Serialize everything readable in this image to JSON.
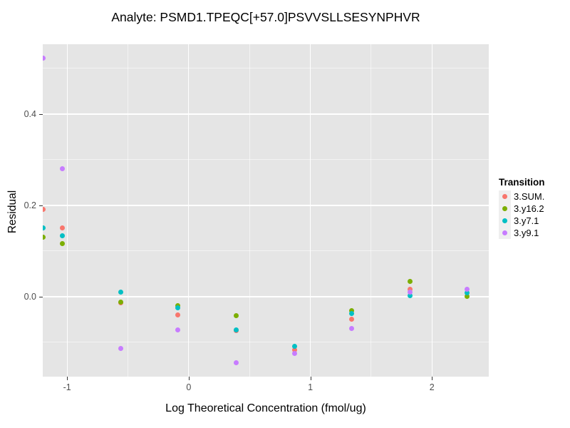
{
  "chart_data": {
    "type": "scatter",
    "title": "Analyte: PSMD1.TPEQC[+57.0]PSVVSLLSESYNPHVR",
    "xlabel": "Log Theoretical Concentration (fmol/ug)",
    "ylabel": "Residual",
    "xlim": [
      -1.2,
      2.467
    ],
    "ylim": [
      -0.175,
      0.553
    ],
    "x_ticks": [
      -1,
      0,
      1,
      2
    ],
    "x_tick_labels": [
      "-1",
      "0",
      "1",
      "2"
    ],
    "y_ticks": [
      0.0,
      0.2,
      0.4
    ],
    "y_tick_labels": [
      "0.0",
      "0.2",
      "0.4"
    ],
    "x_minor_gridlines": [
      -0.5,
      0.5,
      1.5
    ],
    "y_minor_gridlines": [
      -0.1,
      0.1,
      0.3,
      0.5
    ],
    "grid": true,
    "panel_background": "#E5E5E5",
    "gridline_color": "#FFFFFF",
    "tick_label_color": "#4D4D4D",
    "legend_title": "Transition",
    "legend_position": "right",
    "series": [
      {
        "name": "3.SUM.",
        "color": "#F8766D",
        "points": [
          [
            -1.2,
            0.192
          ],
          [
            -1.04,
            0.15
          ],
          [
            -0.56,
            -0.014
          ],
          [
            -0.09,
            -0.04
          ],
          [
            0.39,
            -0.075
          ],
          [
            0.87,
            -0.116
          ],
          [
            1.34,
            -0.05
          ],
          [
            1.82,
            0.016
          ]
        ]
      },
      {
        "name": "3.y16.2",
        "color": "#7CAE00",
        "points": [
          [
            -1.2,
            0.13
          ],
          [
            -1.04,
            0.117
          ],
          [
            -0.56,
            -0.011
          ],
          [
            -0.09,
            -0.02
          ],
          [
            0.39,
            -0.042
          ],
          [
            1.34,
            -0.03
          ],
          [
            1.82,
            0.034
          ],
          [
            2.29,
            0.0
          ]
        ]
      },
      {
        "name": "3.y7.1",
        "color": "#00BFC4",
        "points": [
          [
            -1.2,
            0.15
          ],
          [
            -1.04,
            0.133
          ],
          [
            -0.56,
            0.01
          ],
          [
            -0.09,
            -0.024
          ],
          [
            0.39,
            -0.072
          ],
          [
            0.87,
            -0.109
          ],
          [
            1.34,
            -0.036
          ],
          [
            1.82,
            0.003
          ],
          [
            2.29,
            0.008
          ]
        ]
      },
      {
        "name": "3.y9.1",
        "color": "#C77CFF",
        "points": [
          [
            -1.2,
            0.522
          ],
          [
            -1.04,
            0.28
          ],
          [
            -0.56,
            -0.113
          ],
          [
            -0.09,
            -0.073
          ],
          [
            0.39,
            -0.144
          ],
          [
            0.87,
            -0.125
          ],
          [
            1.34,
            -0.07
          ],
          [
            1.82,
            0.01
          ],
          [
            2.29,
            0.016
          ]
        ]
      }
    ]
  }
}
